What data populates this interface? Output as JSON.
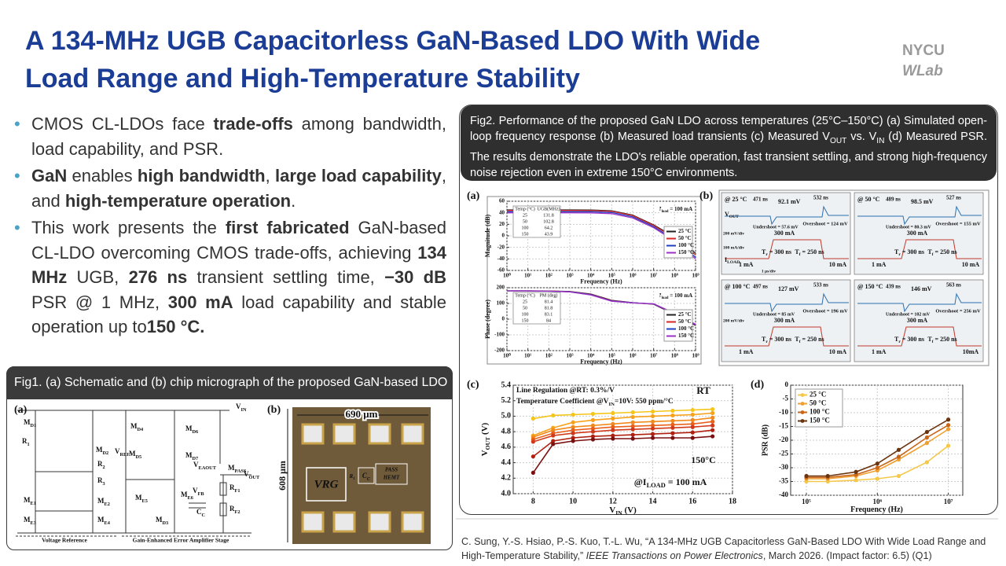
{
  "header": {
    "title_line1": "A 134-MHz UGB Capacitorless GaN-Based LDO With Wide",
    "title_line2": "Load Range and High-Temperature Stability",
    "logo_top": "NYCU",
    "logo_bottom": "WLab"
  },
  "bullets": [
    [
      "CMOS CL-LDOs face ",
      {
        "b": "trade-offs"
      },
      " among bandwidth, load capability, and PSR."
    ],
    [
      {
        "b": "GaN"
      },
      " enables ",
      {
        "b": "high bandwidth"
      },
      ", ",
      {
        "b": "large load capability"
      },
      ", and ",
      {
        "b": "high-temperature operation"
      },
      "."
    ],
    [
      "This work presents the ",
      {
        "b": "first fabricated"
      },
      " GaN-based CL-LDO overcoming CMOS trade-offs, achieving ",
      {
        "b": "134 MHz"
      },
      " UGB, ",
      {
        "b": "276 ns"
      },
      " transient settling time, ",
      {
        "b": "−30 dB"
      },
      " PSR @ 1 MHz, ",
      {
        "b": "300 mA"
      },
      " load capability and stable operation up to",
      {
        "b": "150 °C."
      }
    ]
  ],
  "figure1": {
    "caption": "Fig1. (a) Schematic and (b) chip micrograph of the proposed GaN-based LDO",
    "panel_a": {
      "tag": "(a)",
      "labels": [
        [
          "V",
          {
            "sub": "IN"
          }
        ],
        [
          "M",
          {
            "sub": "D1"
          }
        ],
        [
          "R",
          {
            "sub": "1"
          }
        ],
        [
          "M",
          {
            "sub": "D2"
          }
        ],
        [
          "V",
          {
            "sub": "REF"
          }
        ],
        [
          "R",
          {
            "sub": "2"
          }
        ],
        [
          "R",
          {
            "sub": "3"
          }
        ],
        [
          "M",
          {
            "sub": "E1"
          }
        ],
        [
          "M",
          {
            "sub": "E2"
          }
        ],
        [
          "M",
          {
            "sub": "E3"
          }
        ],
        [
          "M",
          {
            "sub": "E4"
          }
        ],
        [
          "M",
          {
            "sub": "D4"
          }
        ],
        [
          "M",
          {
            "sub": "D5"
          }
        ],
        [
          "M",
          {
            "sub": "D6"
          }
        ],
        [
          "M",
          {
            "sub": "D7"
          }
        ],
        [
          "V",
          {
            "sub": "EAOUT"
          }
        ],
        [
          "M",
          {
            "sub": "PASS"
          }
        ],
        [
          "V",
          {
            "sub": "OUT"
          }
        ],
        [
          "R",
          {
            "sub": "F1"
          }
        ],
        [
          "R",
          {
            "sub": "F2"
          }
        ],
        [
          "V",
          {
            "sub": "FB"
          }
        ],
        [
          "C",
          {
            "sub": "C"
          }
        ],
        [
          "M",
          {
            "sub": "E5"
          }
        ],
        [
          "M",
          {
            "sub": "E6"
          }
        ],
        [
          "M",
          {
            "sub": "D3"
          }
        ],
        "Voltage Reference",
        "Gain-Enhanced Error Amplifier Stage"
      ]
    },
    "panel_b": {
      "tag": "(b)",
      "labels": [
        "690 μm",
        "608 μm",
        "VRG",
        [
          "C",
          {
            "sub": "C"
          }
        ],
        [
          "R",
          {
            "sub": "1"
          }
        ],
        "PASS",
        "HEMT"
      ]
    }
  },
  "figure2": {
    "caption": [
      "Fig2. Performance of the proposed GaN LDO across temperatures (25°C–150°C) (a) Simulated open-loop frequency response (b) Measured load transients (c) Measured V",
      {
        "sub": "OUT"
      },
      " vs. V",
      {
        "sub": "IN"
      },
      " (d) Measured PSR. The results demonstrate the LDO's reliable operation, fast transient settling, and strong high-frequency noise rejection even in extreme 150°C environments."
    ],
    "panel_a": {
      "tag": "(a)",
      "magnitude": {
        "type": "line",
        "xscale": "log",
        "grid": true,
        "legend": "center-right",
        "xlabel": "Frequency (Hz)",
        "ylabel": "Magnitude (dB)",
        "x": [
          1,
          10,
          100,
          1000,
          10000,
          100000,
          1000000,
          10000000,
          100000000,
          1000000000
        ],
        "xlim": [
          1,
          1000000000
        ],
        "xticks": [
          {
            "value": 1,
            "label": "10⁰"
          },
          {
            "value": 10,
            "label": "10¹"
          },
          {
            "value": 100,
            "label": "10²"
          },
          {
            "value": 1000,
            "label": "10³"
          },
          {
            "value": 10000,
            "label": "10⁴"
          },
          {
            "value": 100000,
            "label": "10⁵"
          },
          {
            "value": 1000000,
            "label": "10⁶"
          },
          {
            "value": 10000000,
            "label": "10⁷"
          },
          {
            "value": 100000000,
            "label": "10⁸"
          },
          {
            "value": 1000000000,
            "label": "10⁹"
          }
        ],
        "ylim": [
          -60,
          60
        ],
        "yticks": [
          -60,
          -40,
          -20,
          0,
          20,
          40,
          60
        ],
        "series": [
          {
            "name": "25 °C",
            "color": "#222222",
            "values": [
              45,
              45,
              45,
              45,
              44.8,
              43.5,
              36,
              19,
              -2,
              -30
            ]
          },
          {
            "name": "50 °C",
            "color": "#d62728",
            "values": [
              44,
              44,
              44,
              44,
              43.8,
              42.5,
              35,
              18,
              -4,
              -33
            ]
          },
          {
            "name": "100 °C",
            "color": "#1f3fbf",
            "values": [
              42,
              42,
              42,
              42,
              41.8,
              40.5,
              33,
              16,
              -7,
              -37
            ]
          },
          {
            "name": "150 °C",
            "color": "#9b30c8",
            "values": [
              40,
              40,
              40,
              40,
              39.8,
              38.5,
              31,
              14,
              -9,
              -40
            ]
          }
        ],
        "annotations": [
          [
            "I",
            {
              "sub": "load"
            },
            " = 100 mA"
          ]
        ],
        "table": {
          "header": [
            "Temp (°C)",
            "UGB(MHz)"
          ],
          "rows": [
            [
              25,
              131.8
            ],
            [
              50,
              102.8
            ],
            [
              100,
              64.2
            ],
            [
              150,
              43.9
            ]
          ]
        }
      },
      "phase": {
        "type": "line",
        "xscale": "log",
        "grid": true,
        "legend": "center-right",
        "xlabel": "Frequency (Hz)",
        "ylabel": "Phase (degree)",
        "x": [
          1,
          10,
          100,
          1000,
          10000,
          100000,
          1000000,
          10000000,
          100000000,
          1000000000
        ],
        "xlim": [
          1,
          1000000000
        ],
        "xticks": [
          {
            "value": 1,
            "label": "10⁰"
          },
          {
            "value": 10,
            "label": "10¹"
          },
          {
            "value": 100,
            "label": "10²"
          },
          {
            "value": 1000,
            "label": "10³"
          },
          {
            "value": 10000,
            "label": "10⁴"
          },
          {
            "value": 100000,
            "label": "10⁵"
          },
          {
            "value": 1000000,
            "label": "10⁶"
          },
          {
            "value": 10000000,
            "label": "10⁷"
          },
          {
            "value": 100000000,
            "label": "10⁸"
          },
          {
            "value": 1000000000,
            "label": "10⁹"
          }
        ],
        "ylim": [
          -200,
          200
        ],
        "yticks": [
          -200,
          -100,
          0,
          100,
          200
        ],
        "series": [
          {
            "name": "25 °C",
            "color": "#222222",
            "values": [
              180,
              180,
              179,
              176,
              160,
              120,
              105,
              95,
              30,
              -40
            ]
          },
          {
            "name": "50 °C",
            "color": "#d62728",
            "values": [
              180,
              180,
              179,
              175,
              158,
              118,
              104,
              96,
              32,
              -38
            ]
          },
          {
            "name": "100 °C",
            "color": "#1f3fbf",
            "values": [
              180,
              180,
              178,
              174,
              156,
              116,
              104,
              97,
              35,
              -35
            ]
          },
          {
            "name": "150 °C",
            "color": "#9b30c8",
            "values": [
              180,
              180,
              178,
              173,
              154,
              114,
              103,
              98,
              38,
              -32
            ]
          }
        ],
        "annotations": [
          [
            "I",
            {
              "sub": "load"
            },
            " = 100 mA"
          ]
        ],
        "table": {
          "header": [
            "Temp (°C)",
            "PM (deg)"
          ],
          "rows": [
            [
              25,
              81.4
            ],
            [
              50,
              81.8
            ],
            [
              100,
              83.1
            ],
            [
              150,
              84
            ]
          ]
        }
      }
    },
    "panel_b": {
      "tag": "(b)",
      "scopes": [
        {
          "temp": "@ 25 °C",
          "t1": "471 ns",
          "dv": "92.1 mV",
          "t2": "532 ns",
          "under": "Undershoot = 57.6 mV",
          "over": "Overshoot = 124 mV",
          "high": "300 mA",
          "low1": "1 mA",
          "low2": "10 mA",
          "tr": [
            "T",
            {
              "sub": "r"
            },
            " = 300 ns"
          ],
          "tf": [
            "T",
            {
              "sub": "f"
            },
            " = 250 ns"
          ],
          "vout": [
            "V",
            {
              "sub": "OUT"
            }
          ],
          "vscale": "200 mV/div",
          "iscale": "100 mA/div",
          "iload": [
            "I",
            {
              "sub": "LOAD"
            }
          ],
          "tscale": "1 μs/div"
        },
        {
          "temp": "@ 50 °C",
          "t1": "489 ns",
          "dv": "98.5 mV",
          "t2": "527 ns",
          "under": "Undershoot = 80.3 mV",
          "over": "Overshoot = 155 mV",
          "high": "300 mA",
          "low1": "1 mA",
          "low2": "10 mA",
          "tr": [
            "T",
            {
              "sub": "r"
            },
            " = 300 ns"
          ],
          "tf": [
            "T",
            {
              "sub": "f"
            },
            " = 250 ns"
          ]
        },
        {
          "temp": "@ 100 °C",
          "t1": "497 ns",
          "dv": "127 mV",
          "t2": "533 ns",
          "under": "Undershoot = 85 mV",
          "over": "Overshoot = 196 mV",
          "high": "300 mA",
          "low1": "1 mA",
          "low2": "10 mA",
          "tr": [
            "T",
            {
              "sub": "r"
            },
            " = 300 ns"
          ],
          "tf": [
            "T",
            {
              "sub": "f"
            },
            " = 250 ns"
          ],
          "vscale": "200 mV/div"
        },
        {
          "temp": "@ 150 °C",
          "t1": "439 ns",
          "dv": "146 mV",
          "t2": "563 ns",
          "under": "Undershoot = 102 mV",
          "over": "Overshoot = 256 mV",
          "high": "300 mA",
          "low1": "1 mA",
          "low2": "10mA",
          "tr": [
            "T",
            {
              "sub": "r"
            },
            " = 300 ns"
          ],
          "tf": [
            "T",
            {
              "sub": "f"
            },
            " = 250 ns"
          ]
        }
      ]
    },
    "panel_c": {
      "tag": "(c)",
      "chart": {
        "type": "line",
        "grid": true,
        "markers": true,
        "xlabel": [
          "V",
          {
            "sub": "IN"
          },
          " (V)"
        ],
        "ylabel": [
          "V",
          {
            "sub": "OUT"
          },
          " (V)"
        ],
        "x": [
          8,
          9,
          10,
          11,
          12,
          13,
          14,
          15,
          16,
          17
        ],
        "xlim": [
          7,
          18
        ],
        "xticks": [
          8,
          10,
          12,
          14,
          16,
          18
        ],
        "ylim": [
          4.0,
          5.4
        ],
        "yticks": [
          {
            "value": 4.0,
            "label": "4.0"
          },
          {
            "value": 4.2,
            "label": "4.2"
          },
          {
            "value": 4.4,
            "label": "4.4"
          },
          {
            "value": 4.6,
            "label": "4.6"
          },
          {
            "value": 4.8,
            "label": "4.8"
          },
          {
            "value": 5.0,
            "label": "5.0"
          },
          {
            "value": 5.2,
            "label": "5.2"
          },
          {
            "value": 5.4,
            "label": "5.4"
          }
        ],
        "series": [
          {
            "color": "#f5c518",
            "values": [
              4.97,
              5.01,
              5.02,
              5.03,
              5.04,
              5.05,
              5.06,
              5.07,
              5.08,
              5.09
            ]
          },
          {
            "color": "#f7a21b",
            "values": [
              4.75,
              4.85,
              4.92,
              4.95,
              4.97,
              4.99,
              5.0,
              5.01,
              5.02,
              5.04
            ]
          },
          {
            "color": "#f08a1c",
            "values": [
              4.73,
              4.82,
              4.86,
              4.88,
              4.9,
              4.92,
              4.93,
              4.94,
              4.95,
              4.98
            ]
          },
          {
            "color": "#e8601c",
            "values": [
              4.7,
              4.78,
              4.82,
              4.84,
              4.86,
              4.87,
              4.88,
              4.89,
              4.9,
              4.93
            ]
          },
          {
            "color": "#d03a1a",
            "values": [
              4.67,
              4.75,
              4.78,
              4.8,
              4.82,
              4.83,
              4.84,
              4.85,
              4.86,
              4.88
            ]
          },
          {
            "color": "#b02010",
            "values": [
              4.48,
              4.68,
              4.72,
              4.74,
              4.75,
              4.76,
              4.77,
              4.78,
              4.79,
              4.82
            ]
          },
          {
            "color": "#7a1010",
            "values": [
              4.27,
              4.64,
              4.68,
              4.7,
              4.71,
              4.71,
              4.72,
              4.72,
              4.72,
              4.74
            ]
          }
        ],
        "annotations": [
          "Line Regulation @RT: 0.3%/V",
          [
            "Temperature Coefficient @V",
            {
              "sub": "IN"
            },
            "=10V: 550 ppm/°C"
          ],
          "RT",
          "150°C",
          [
            "@I",
            {
              "sub": "LOAD"
            },
            " = 100 mA"
          ]
        ]
      }
    },
    "panel_d": {
      "tag": "(d)",
      "chart": {
        "type": "line",
        "xscale": "log",
        "grid": true,
        "markers": true,
        "legend": "upper-left",
        "xlabel": "Frequency (Hz)",
        "ylabel": "PSR (dB)",
        "x": [
          100000,
          200000,
          500000,
          1000000,
          2000000,
          5000000,
          10000000
        ],
        "xlim": [
          60000,
          16000000
        ],
        "xticks": [
          {
            "value": 100000,
            "label": "10⁵"
          },
          {
            "value": 1000000,
            "label": "10⁶"
          },
          {
            "value": 10000000,
            "label": "10⁷"
          }
        ],
        "ylim": [
          -40,
          0
        ],
        "yticks": [
          -40,
          -35,
          -30,
          -25,
          -20,
          -15,
          -10,
          -5,
          0
        ],
        "series": [
          {
            "name": "25 °C",
            "color": "#f5c84a",
            "values": [
              -35,
              -35,
              -34.5,
              -34,
              -33,
              -28,
              -22
            ]
          },
          {
            "name": "50 °C",
            "color": "#f0a030",
            "values": [
              -34,
              -34,
              -33,
              -31,
              -27,
              -21,
              -16
            ]
          },
          {
            "name": "100 °C",
            "color": "#c8661a",
            "values": [
              -33.5,
              -33.5,
              -32.5,
              -30,
              -26,
              -19,
              -14.5
            ]
          },
          {
            "name": "150 °C",
            "color": "#6b3410",
            "values": [
              -33,
              -33,
              -31.5,
              -28.5,
              -23.5,
              -17,
              -12.5
            ]
          }
        ]
      }
    }
  },
  "citation": [
    "C. Sung, Y.-S. Hsiao, P.-S. Kuo, T.-L. Wu, “A 134-MHz UGB Capacitorless GaN-Based LDO With Wide Load Range and High-Temperature Stability,” ",
    {
      "i": "IEEE Transactions on Power Electronics"
    },
    ", March 2026. (Impact factor: 6.5) (Q1)"
  ]
}
